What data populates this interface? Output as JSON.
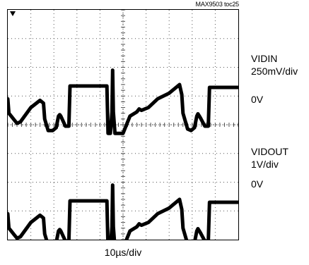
{
  "figure_tag": "MAX9503 toc25",
  "channels": [
    {
      "name": "VIDIN",
      "scale": "250mV/div",
      "zero": "0V"
    },
    {
      "name": "VIDOUT",
      "scale": "1V/div",
      "zero": "0V"
    }
  ],
  "timebase": "10µs/div",
  "colors": {
    "trace": "#000000",
    "grid": "#555555",
    "background": "#ffffff"
  },
  "chart_data": {
    "type": "line",
    "title": "",
    "xlabel": "10µs/div",
    "x_divisions": 10,
    "y_divisions": 8,
    "grid": true,
    "legend": "right",
    "series": [
      {
        "name": "VIDIN",
        "units": "divisions",
        "x": [
          0,
          0.05,
          0.4,
          0.55,
          1.0,
          1.4,
          1.55,
          1.6,
          1.75,
          1.95,
          2.1,
          2.2,
          2.25,
          2.3,
          2.5,
          2.65,
          2.7,
          4.3,
          4.35,
          4.45,
          4.52,
          4.55,
          4.58,
          4.65,
          4.75,
          5.0,
          5.3,
          5.6,
          5.7,
          5.8,
          6.1,
          6.5,
          7.0,
          7.45,
          7.55,
          7.6,
          7.8,
          7.95,
          8.1,
          8.2,
          8.25,
          8.35,
          8.55,
          8.7,
          8.75,
          10.0
        ],
        "y": [
          -0.1,
          -0.6,
          -0.95,
          -0.9,
          -0.4,
          -0.15,
          -0.25,
          -0.8,
          -1.2,
          -1.2,
          -1.1,
          -0.7,
          -0.65,
          -0.7,
          -1.05,
          -1.05,
          0.35,
          0.35,
          -1.3,
          -1.3,
          -0.55,
          0.9,
          -0.55,
          -1.3,
          -1.3,
          -1.3,
          -0.7,
          -0.55,
          -0.45,
          -0.5,
          -0.4,
          -0.1,
          0.1,
          0.4,
          0.05,
          -0.6,
          -1.15,
          -1.2,
          -1.1,
          -0.7,
          -0.62,
          -0.75,
          -1.05,
          -1.05,
          0.3,
          0.3
        ]
      },
      {
        "name": "VIDOUT",
        "units": "divisions",
        "x": [
          0,
          0.05,
          0.4,
          0.55,
          1.0,
          1.4,
          1.55,
          1.6,
          1.75,
          1.95,
          2.1,
          2.2,
          2.25,
          2.3,
          2.5,
          2.65,
          2.7,
          4.3,
          4.35,
          4.45,
          4.52,
          4.55,
          4.58,
          4.65,
          4.75,
          5.0,
          5.3,
          5.6,
          5.7,
          5.8,
          6.1,
          6.5,
          7.0,
          7.45,
          7.55,
          7.6,
          7.8,
          7.95,
          8.1,
          8.2,
          8.25,
          8.35,
          8.55,
          8.7,
          8.75,
          10.0
        ],
        "y": [
          -0.1,
          -0.6,
          -0.95,
          -0.9,
          -0.4,
          -0.15,
          -0.25,
          -0.8,
          -1.2,
          -1.2,
          -1.1,
          -0.7,
          -0.65,
          -0.7,
          -1.05,
          -1.05,
          0.35,
          0.35,
          -1.3,
          -1.3,
          -0.55,
          0.9,
          -0.55,
          -1.3,
          -1.3,
          -1.3,
          -0.7,
          -0.55,
          -0.45,
          -0.5,
          -0.4,
          -0.1,
          0.1,
          0.4,
          0.05,
          -0.6,
          -1.15,
          -1.2,
          -1.1,
          -0.7,
          -0.62,
          -0.75,
          -1.05,
          -1.05,
          0.3,
          0.3
        ]
      }
    ]
  }
}
